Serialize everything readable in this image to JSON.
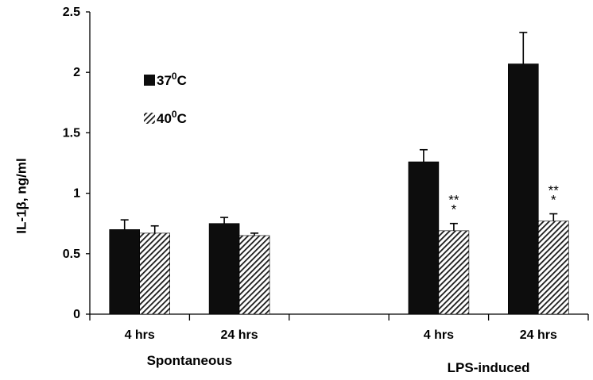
{
  "chart_data": {
    "type": "bar",
    "ylabel": "IL-1β, ng/ml",
    "ylim": [
      0,
      2.5
    ],
    "yticks": [
      "0",
      "0.5",
      "1",
      "1.5",
      "2",
      "2.5"
    ],
    "categories": [
      "4 hrs",
      "24 hrs",
      "",
      "4 hrs",
      "24 hrs"
    ],
    "groups": [
      {
        "label": "Spontaneous",
        "categories": [
          0,
          1
        ]
      },
      {
        "label": "LPS-induced",
        "categories": [
          3,
          4
        ]
      }
    ],
    "series": [
      {
        "name": "37",
        "superscript": "0",
        "unit": "C",
        "pattern": "solid",
        "color": "#0d0d0d",
        "values": [
          0.7,
          0.75,
          null,
          1.26,
          2.07
        ],
        "errors": [
          0.08,
          0.05,
          null,
          0.1,
          0.26
        ]
      },
      {
        "name": "40",
        "superscript": "0",
        "unit": "C",
        "pattern": "hatched",
        "color": "#000000",
        "values": [
          0.67,
          0.65,
          null,
          0.69,
          0.77
        ],
        "errors": [
          0.06,
          0.02,
          null,
          0.06,
          0.06
        ]
      }
    ],
    "annotations": [
      {
        "category": 3,
        "series": 1,
        "lines": [
          "**",
          "*"
        ]
      },
      {
        "category": 4,
        "series": 1,
        "lines": [
          "**",
          "*"
        ]
      }
    ],
    "legend_position": "top-left"
  }
}
